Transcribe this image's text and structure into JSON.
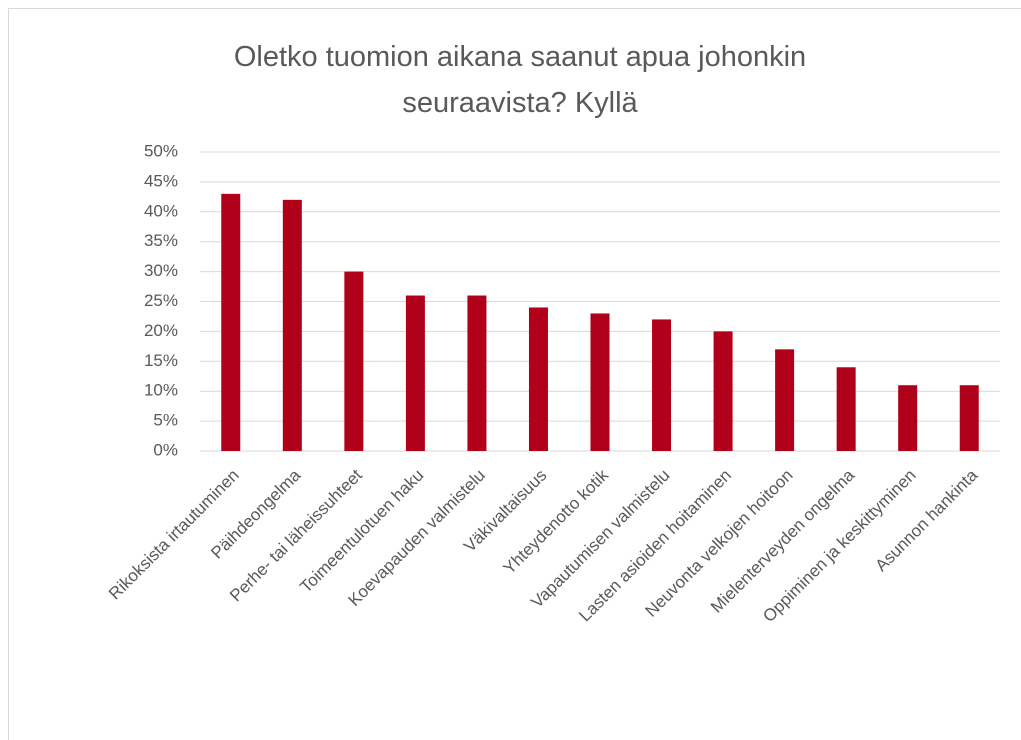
{
  "chart_data": {
    "type": "bar",
    "title": "Oletko tuomion aikana saanut apua johonkin seuraavista? Kyllä",
    "categories": [
      "Rikoksista irtautuminen",
      "Päihdeongelma",
      "Perhe- tai läheissuhteet",
      "Toimeentulotuen haku",
      "Koevapauden valmistelu",
      "Väkivaltaisuus",
      "Yhteydenotto kotik",
      "Vapautumisen valmistelu",
      "Lasten asioiden hoitaminen",
      "Neuvonta velkojen hoitoon",
      "Mielenterveyden ongelma",
      "Oppiminen ja keskittyminen",
      "Asunnon hankinta"
    ],
    "values": [
      43,
      42,
      30,
      26,
      26,
      24,
      23,
      22,
      20,
      17,
      14,
      11,
      11
    ],
    "color": "#b0001a",
    "ylim": [
      0,
      50
    ],
    "yticks": [
      {
        "value": 0,
        "label": "0%"
      },
      {
        "value": 5,
        "label": "5%"
      },
      {
        "value": 10,
        "label": "10%"
      },
      {
        "value": 15,
        "label": "15%"
      },
      {
        "value": 20,
        "label": "20%"
      },
      {
        "value": 25,
        "label": "25%"
      },
      {
        "value": 30,
        "label": "30%"
      },
      {
        "value": 35,
        "label": "35%"
      },
      {
        "value": 40,
        "label": "40%"
      },
      {
        "value": 45,
        "label": "45%"
      },
      {
        "value": 50,
        "label": "50%"
      }
    ],
    "grid": true
  }
}
